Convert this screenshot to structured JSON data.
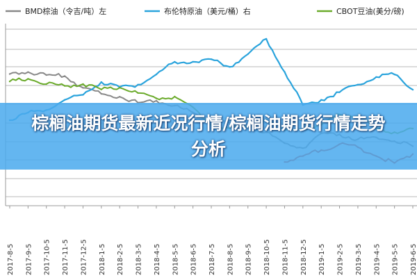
{
  "banner": {
    "title": "棕榈油期货最新近况行情/棕榈油期货行情走势分析"
  },
  "chart_data": {
    "type": "line",
    "x": [
      "2017-8-5",
      "2017-9-5",
      "2017-10-5",
      "2017-11-5",
      "2017-12-5",
      "2018-1-5",
      "2018-2-5",
      "2018-3-5",
      "2018-4-5",
      "2018-5-5",
      "2018-6-5",
      "2018-7-5",
      "2018-8-5",
      "2018-9-5",
      "2018-10-5",
      "2018-11-5",
      "2018-12-5",
      "2019-1-5",
      "2019-2-5",
      "2019-3-5",
      "2019-4-5",
      "2019-5-5",
      "2019-6-5"
    ],
    "series": [
      {
        "name": "BMD棕油（令吉/吨）左",
        "color": "#888888",
        "values": [
          2790,
          2810,
          2780,
          2770,
          2650,
          2590,
          2560,
          2500,
          2520,
          2470,
          2400,
          2310,
          2300,
          2240,
          2200,
          2090,
          2040,
          2190,
          2180,
          2130,
          2150,
          2110,
          2060
        ]
      },
      {
        "name": "布伦特原油（美元/桶）右",
        "color": "#29a3dc",
        "values": [
          52,
          55,
          56,
          60,
          62,
          67,
          65,
          66,
          70,
          75,
          75,
          76,
          73,
          78,
          84,
          71,
          58,
          60,
          63,
          66,
          69,
          70,
          64
        ]
      },
      {
        "name": "CBOT豆油(美分/磅)",
        "color": "#6aaa2a",
        "values": [
          33.5,
          33.8,
          33.2,
          33.0,
          33.2,
          32.6,
          32.8,
          32.2,
          31.6,
          31.8,
          30.6,
          28.6,
          28.2,
          28.4,
          29.2,
          28.0,
          28.2,
          28.6,
          29.8,
          29.6,
          28.2,
          27.8,
          28.2
        ]
      },
      {
        "name": "",
        "color": "#d9442a",
        "values": [
          null,
          null,
          null,
          null,
          null,
          null,
          null,
          null,
          null,
          null,
          null,
          null,
          null,
          null,
          null,
          1900,
          1960,
          2020,
          2080,
          2050,
          1960,
          1890,
          1980
        ]
      }
    ]
  }
}
